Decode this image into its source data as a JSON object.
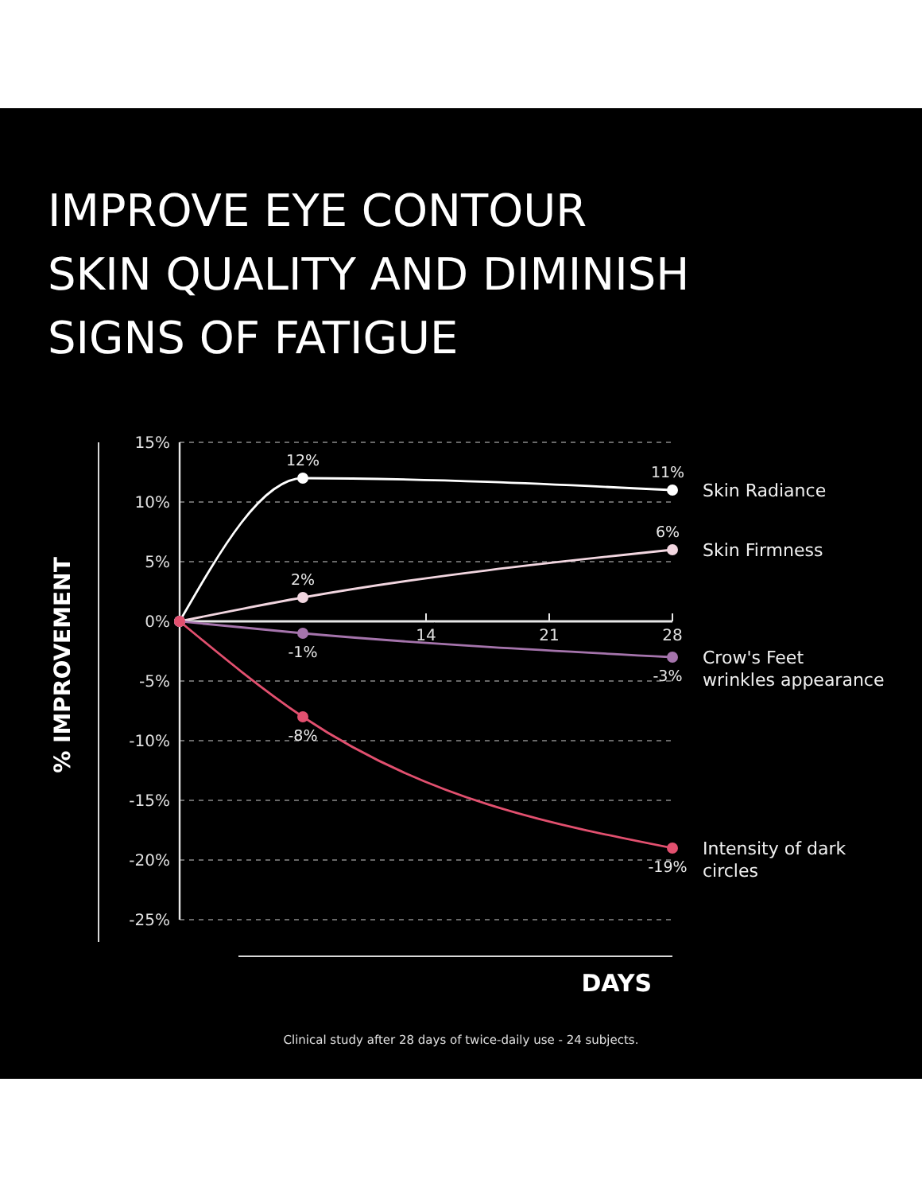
{
  "chart_data": {
    "type": "line",
    "title": "IMPROVE EYE CONTOUR\nSKIN QUALITY AND DIMINISH\nSIGNS OF FATIGUE",
    "ylabel": "% IMPROVEMENT",
    "xlabel": "DAYS",
    "annotations": [
      "Clinical study after 28 days of twice-daily use - 24 subjects."
    ],
    "xlim": [
      0,
      28
    ],
    "xticks": [
      14,
      21,
      28
    ],
    "ylim": [
      -25,
      15
    ],
    "yticks": [
      {
        "value": 15,
        "label": "15%"
      },
      {
        "value": 10,
        "label": "10%"
      },
      {
        "value": 5,
        "label": "5%"
      },
      {
        "value": 0,
        "label": "0%"
      },
      {
        "value": -5,
        "label": "-5%"
      },
      {
        "value": -10,
        "label": "-10%"
      },
      {
        "value": -15,
        "label": "-15%"
      },
      {
        "value": -20,
        "label": "-20%"
      },
      {
        "value": -25,
        "label": "-25%"
      }
    ],
    "grid": "y",
    "marker": "circle",
    "line_style": "solid",
    "series": [
      {
        "name": "Skin Radiance",
        "color": "#ffffff",
        "x": [
          0,
          7,
          28
        ],
        "values": [
          0,
          12,
          11
        ],
        "value_labels": [
          null,
          "12%",
          "11%"
        ]
      },
      {
        "name": "Skin Firmness",
        "color": "#f2d6e0",
        "x": [
          0,
          7,
          28
        ],
        "values": [
          0,
          2,
          6
        ],
        "value_labels": [
          null,
          "2%",
          "6%"
        ]
      },
      {
        "name": "Crow's Feet wrinkles appearance",
        "color": "#a574ac",
        "x": [
          0,
          7,
          28
        ],
        "values": [
          0,
          -1,
          -3
        ],
        "value_labels": [
          null,
          "-1%",
          "-3%"
        ]
      },
      {
        "name": "Intensity of dark circles",
        "color": "#e2506f",
        "x": [
          0,
          7,
          28
        ],
        "values": [
          0,
          -8,
          -19
        ],
        "value_labels": [
          null,
          "-8%",
          "-19%"
        ]
      }
    ]
  }
}
